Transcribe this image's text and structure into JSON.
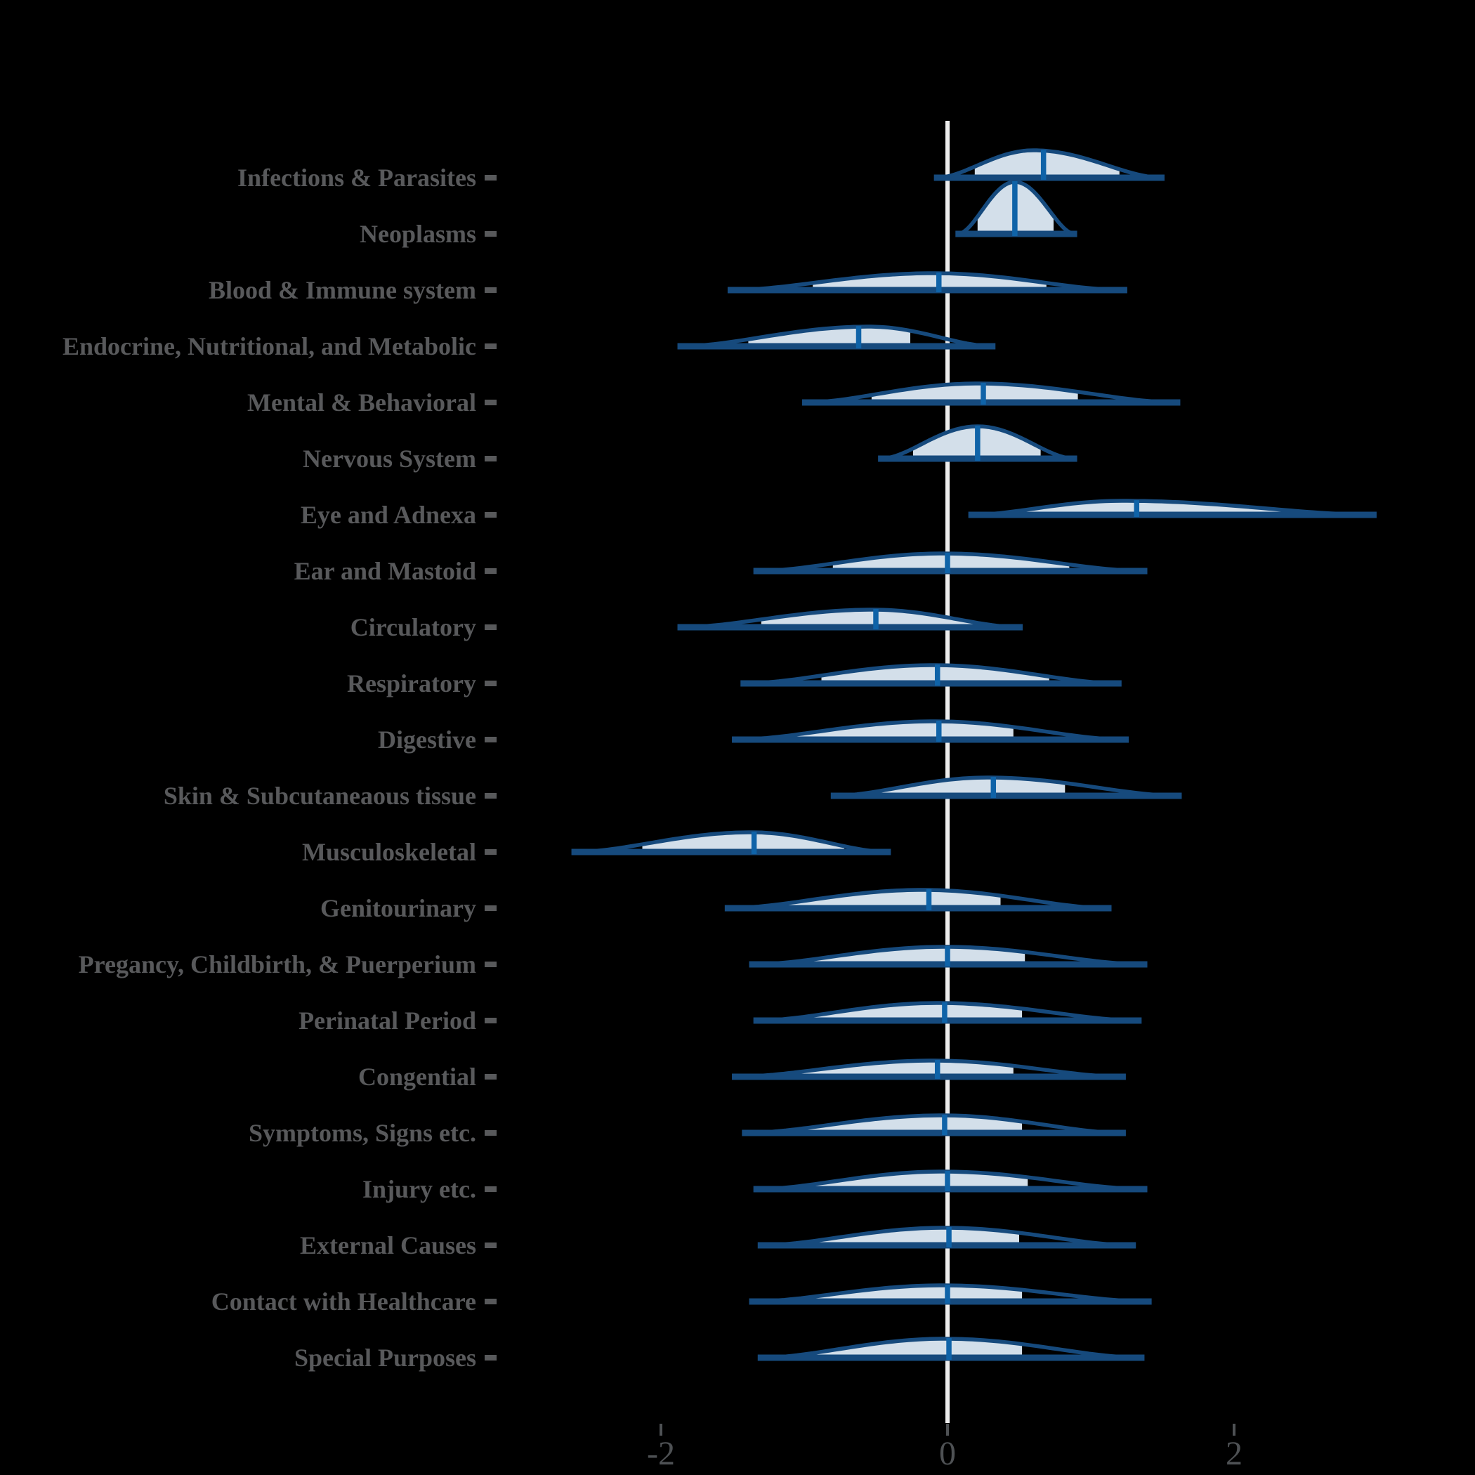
{
  "chart_data": {
    "type": "violin",
    "orientation": "horizontal",
    "title": "",
    "xlabel": "",
    "ylabel": "",
    "x_axis": {
      "tick_values": [
        -2,
        0,
        2
      ],
      "tick_labels": [
        "-2",
        "0",
        "2"
      ],
      "xlim": [
        -3.4,
        3.7
      ],
      "zero_reference_line": true
    },
    "legend": null,
    "grid": false,
    "categories": [
      {
        "label": "Infections & Parasites",
        "min": -0.08,
        "q1": 0.19,
        "median": 0.67,
        "q3": 1.2,
        "max": 1.5,
        "mode": 0.6,
        "peak_h": 39
      },
      {
        "label": "Neoplasms",
        "min": 0.07,
        "q1": 0.21,
        "median": 0.47,
        "q3": 0.74,
        "max": 0.89,
        "mode": 0.47,
        "peak_h": 74
      },
      {
        "label": "Blood & Immune system",
        "min": -1.52,
        "q1": -0.94,
        "median": -0.06,
        "q3": 0.69,
        "max": 1.24,
        "mode": -0.1,
        "peak_h": 24
      },
      {
        "label": "Endocrine, Nutritional, and Metabolic",
        "min": -1.87,
        "q1": -1.39,
        "median": -0.62,
        "q3": -0.26,
        "max": 0.32,
        "mode": -0.55,
        "peak_h": 28
      },
      {
        "label": "Mental & Behavioral",
        "min": -1.0,
        "q1": -0.53,
        "median": 0.25,
        "q3": 0.91,
        "max": 1.61,
        "mode": 0.21,
        "peak_h": 27
      },
      {
        "label": "Nervous System",
        "min": -0.47,
        "q1": -0.24,
        "median": 0.21,
        "q3": 0.65,
        "max": 0.89,
        "mode": 0.21,
        "peak_h": 46
      },
      {
        "label": "Eye and Adnexa",
        "min": 0.16,
        "q1": 0.5,
        "median": 1.32,
        "q3": 2.34,
        "max": 2.98,
        "mode": 1.22,
        "peak_h": 20
      },
      {
        "label": "Ear and Mastoid",
        "min": -1.34,
        "q1": -0.8,
        "median": 0.0,
        "q3": 0.85,
        "max": 1.38,
        "mode": -0.03,
        "peak_h": 25
      },
      {
        "label": "Circulatory",
        "min": -1.87,
        "q1": -1.3,
        "median": -0.5,
        "q3": 0.18,
        "max": 0.51,
        "mode": -0.52,
        "peak_h": 25
      },
      {
        "label": "Respiratory",
        "min": -1.43,
        "q1": -0.88,
        "median": -0.07,
        "q3": 0.71,
        "max": 1.2,
        "mode": -0.1,
        "peak_h": 26
      },
      {
        "label": "Digestive",
        "min": -1.49,
        "q1": -1.06,
        "median": -0.06,
        "q3": 0.46,
        "max": 1.25,
        "mode": -0.09,
        "peak_h": 26
      },
      {
        "label": "Skin & Subcutaneaous tissue",
        "min": -0.8,
        "q1": -0.57,
        "median": 0.32,
        "q3": 0.82,
        "max": 1.62,
        "mode": 0.28,
        "peak_h": 26
      },
      {
        "label": "Musculoskeletal",
        "min": -2.61,
        "q1": -2.13,
        "median": -1.35,
        "q3": -0.72,
        "max": -0.41,
        "mode": -1.37,
        "peak_h": 28
      },
      {
        "label": "Genitourinary",
        "min": -1.54,
        "q1": -1.12,
        "median": -0.13,
        "q3": 0.37,
        "max": 1.13,
        "mode": -0.17,
        "peak_h": 26
      },
      {
        "label": "Pregancy, Childbirth, & Puerperium",
        "min": -1.37,
        "q1": -1.0,
        "median": 0.0,
        "q3": 0.54,
        "max": 1.38,
        "mode": -0.02,
        "peak_h": 25
      },
      {
        "label": "Perinatal Period",
        "min": -1.34,
        "q1": -0.96,
        "median": -0.02,
        "q3": 0.52,
        "max": 1.34,
        "mode": -0.07,
        "peak_h": 25
      },
      {
        "label": "Congential",
        "min": -1.49,
        "q1": -1.1,
        "median": -0.07,
        "q3": 0.46,
        "max": 1.23,
        "mode": -0.1,
        "peak_h": 23
      },
      {
        "label": "Symptoms, Signs etc.",
        "min": -1.42,
        "q1": -1.0,
        "median": -0.02,
        "q3": 0.52,
        "max": 1.23,
        "mode": -0.04,
        "peak_h": 25
      },
      {
        "label": "Injury etc.",
        "min": -1.34,
        "q1": -1.0,
        "median": 0.0,
        "q3": 0.56,
        "max": 1.38,
        "mode": -0.04,
        "peak_h": 25
      },
      {
        "label": "External Causes",
        "min": -1.31,
        "q1": -0.96,
        "median": 0.01,
        "q3": 0.5,
        "max": 1.3,
        "mode": -0.02,
        "peak_h": 25
      },
      {
        "label": "Contact with Healthcare",
        "min": -1.37,
        "q1": -1.0,
        "median": 0.0,
        "q3": 0.52,
        "max": 1.41,
        "mode": -0.04,
        "peak_h": 23
      },
      {
        "label": "Special Purposes",
        "min": -1.31,
        "q1": -0.99,
        "median": 0.01,
        "q3": 0.52,
        "max": 1.36,
        "mode": -0.02,
        "peak_h": 27
      }
    ],
    "colors": {
      "violin_outline": "#164A7D",
      "violin_fill": "#D3DFEA",
      "median_line": "#0F63A8",
      "baseline": "#164A7D",
      "zero_line": "#EDEDED",
      "category_label": "#58595B",
      "axis_tick": "#4E5154",
      "background": "#000000"
    }
  }
}
